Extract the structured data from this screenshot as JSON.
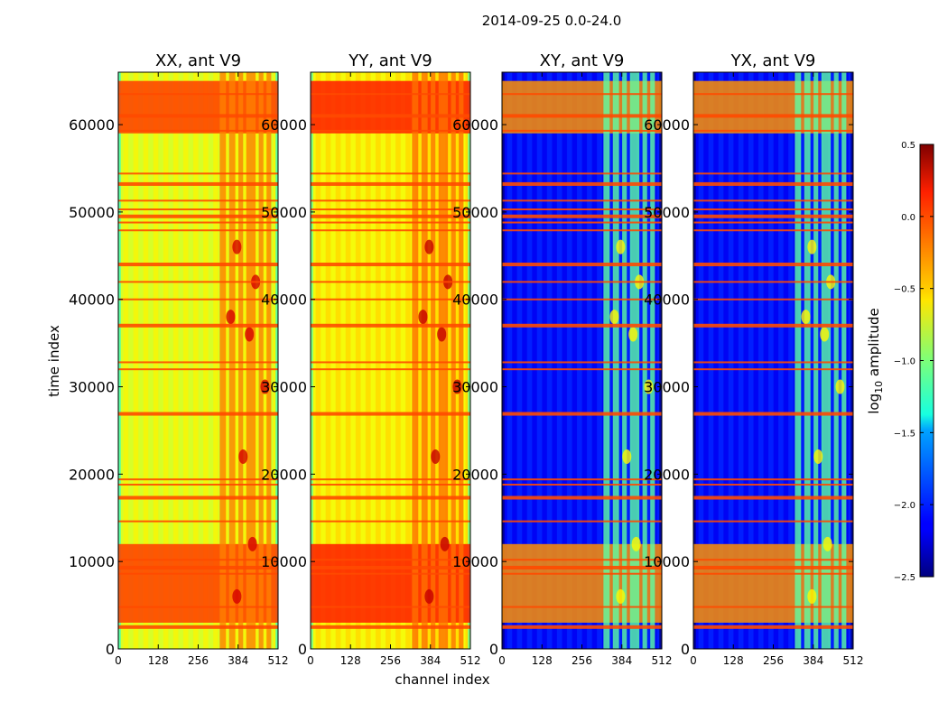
{
  "chart_data": {
    "type": "heatmap",
    "suptitle": "2014-09-25 0.0-24.0",
    "xlabel": "channel index",
    "ylabel": "time index",
    "x_range": [
      0,
      512
    ],
    "y_range": [
      0,
      66000
    ],
    "x_ticks": [
      "0",
      "128",
      "256",
      "384",
      "512"
    ],
    "y_ticks": [
      "0",
      "10000",
      "20000",
      "30000",
      "40000",
      "50000",
      "60000"
    ],
    "panels": [
      {
        "title": "XX, ant V9",
        "base_value": -0.7,
        "high_band_value": -0.05,
        "rfi_columns_value": -0.25
      },
      {
        "title": "YY, ant V9",
        "base_value": -0.6,
        "high_band_value": 0.05,
        "rfi_columns_value": -0.2
      },
      {
        "title": "XY, ant V9",
        "base_value": -2.1,
        "high_band_value": -0.3,
        "rfi_columns_value": -1.1
      },
      {
        "title": "YX, ant V9",
        "base_value": -2.1,
        "high_band_value": -0.3,
        "rfi_columns_value": -1.1
      }
    ],
    "flagged_rows": [
      2500,
      4800,
      8600,
      9300,
      10200,
      14600,
      17300,
      18800,
      19400,
      26900,
      32000,
      32800,
      37000,
      40000,
      42000,
      44000,
      47900,
      48800,
      49500,
      50300,
      51300,
      53200,
      54400,
      59300,
      61000,
      63500
    ],
    "high_amplitude_time_ranges": [
      [
        3000,
        12000
      ],
      [
        59000,
        65000
      ]
    ],
    "colorbar": {
      "label": "log10 amplitude",
      "min": -2.5,
      "max": 0.5,
      "ticks": [
        "0.5",
        "0.0",
        "−0.5",
        "−1.0",
        "−1.5",
        "−2.0",
        "−2.5"
      ],
      "colormap": "jet"
    }
  }
}
